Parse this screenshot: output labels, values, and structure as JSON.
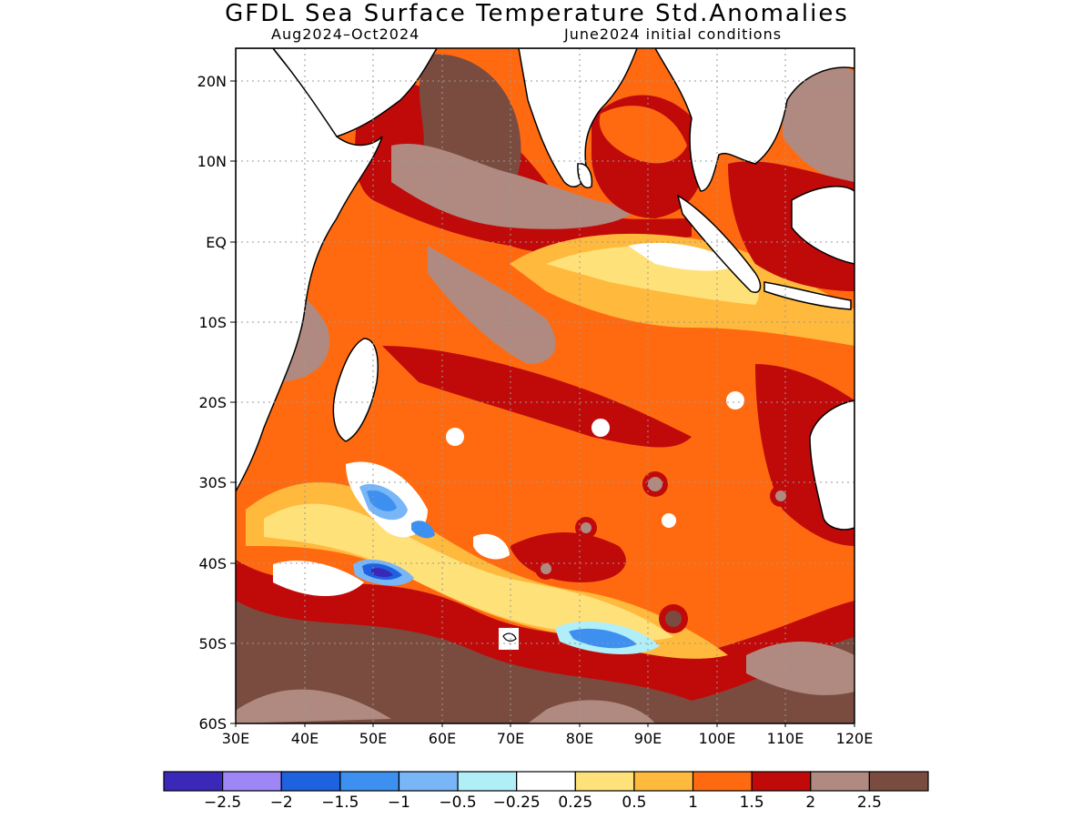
{
  "title": "GFDL Sea Surface Temperature Std.Anomalies",
  "period": "Aug2024–Oct2024",
  "init": "June2024 initial conditions",
  "lat_labels": [
    "20N",
    "10N",
    "EQ",
    "10S",
    "20S",
    "30S",
    "40S",
    "50S",
    "60S"
  ],
  "lon_labels": [
    "30E",
    "40E",
    "50E",
    "60E",
    "70E",
    "80E",
    "90E",
    "100E",
    "110E",
    "120E"
  ],
  "colorbar": {
    "colors": [
      "#3a28b8",
      "#9e86f6",
      "#1f62e0",
      "#3d8ff0",
      "#79b6f7",
      "#b0eef8",
      "#ffffff",
      "#ffe17a",
      "#ffb93d",
      "#ff6a10",
      "#c00a0a",
      "#b08a80",
      "#7a4c40"
    ],
    "labels": [
      "−2.5",
      "−2",
      "−1.5",
      "−1",
      "−0.5",
      "−0.25",
      "0.25",
      "0.5",
      "1",
      "1.5",
      "2",
      "2.5"
    ]
  },
  "legend_bins": [
    -2.5,
    -2,
    -1.5,
    -1,
    -0.5,
    -0.25,
    0.25,
    0.5,
    1,
    1.5,
    2,
    2.5
  ]
}
